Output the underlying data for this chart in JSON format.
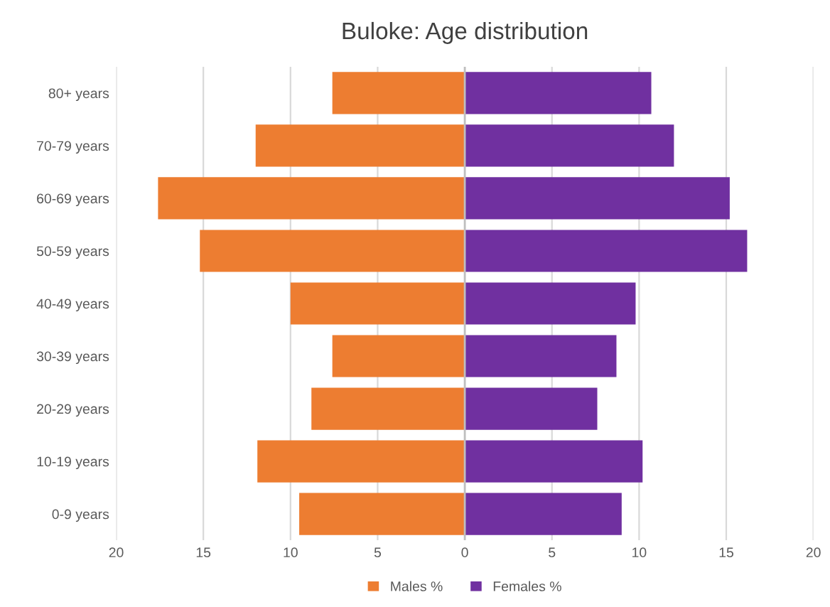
{
  "chart_data": {
    "type": "bar",
    "orientation": "horizontal",
    "title": "Buloke: Age distribution",
    "categories": [
      "80+ years",
      "70-79 years",
      "60-69 years",
      "50-59 years",
      "40-49 years",
      "30-39 years",
      "20-29 years",
      "10-19 years",
      "0-9 years"
    ],
    "series": [
      {
        "name": "Males %",
        "color": "#ed7d31",
        "values": [
          -7.6,
          -12.0,
          -17.6,
          -15.2,
          -10.0,
          -7.6,
          -8.8,
          -11.9,
          -9.5
        ]
      },
      {
        "name": "Females %",
        "color": "#7030a0",
        "values": [
          10.7,
          12.0,
          15.2,
          16.2,
          9.8,
          8.7,
          7.6,
          10.2,
          9.0
        ]
      }
    ],
    "xlim": [
      -20,
      20
    ],
    "xticks": [
      {
        "value": -20,
        "label": "20"
      },
      {
        "value": -15,
        "label": "15"
      },
      {
        "value": -10,
        "label": "10"
      },
      {
        "value": -5,
        "label": "5"
      },
      0,
      5,
      10,
      15,
      20
    ],
    "stacked": true,
    "grid": "x",
    "legend": "bottom"
  }
}
